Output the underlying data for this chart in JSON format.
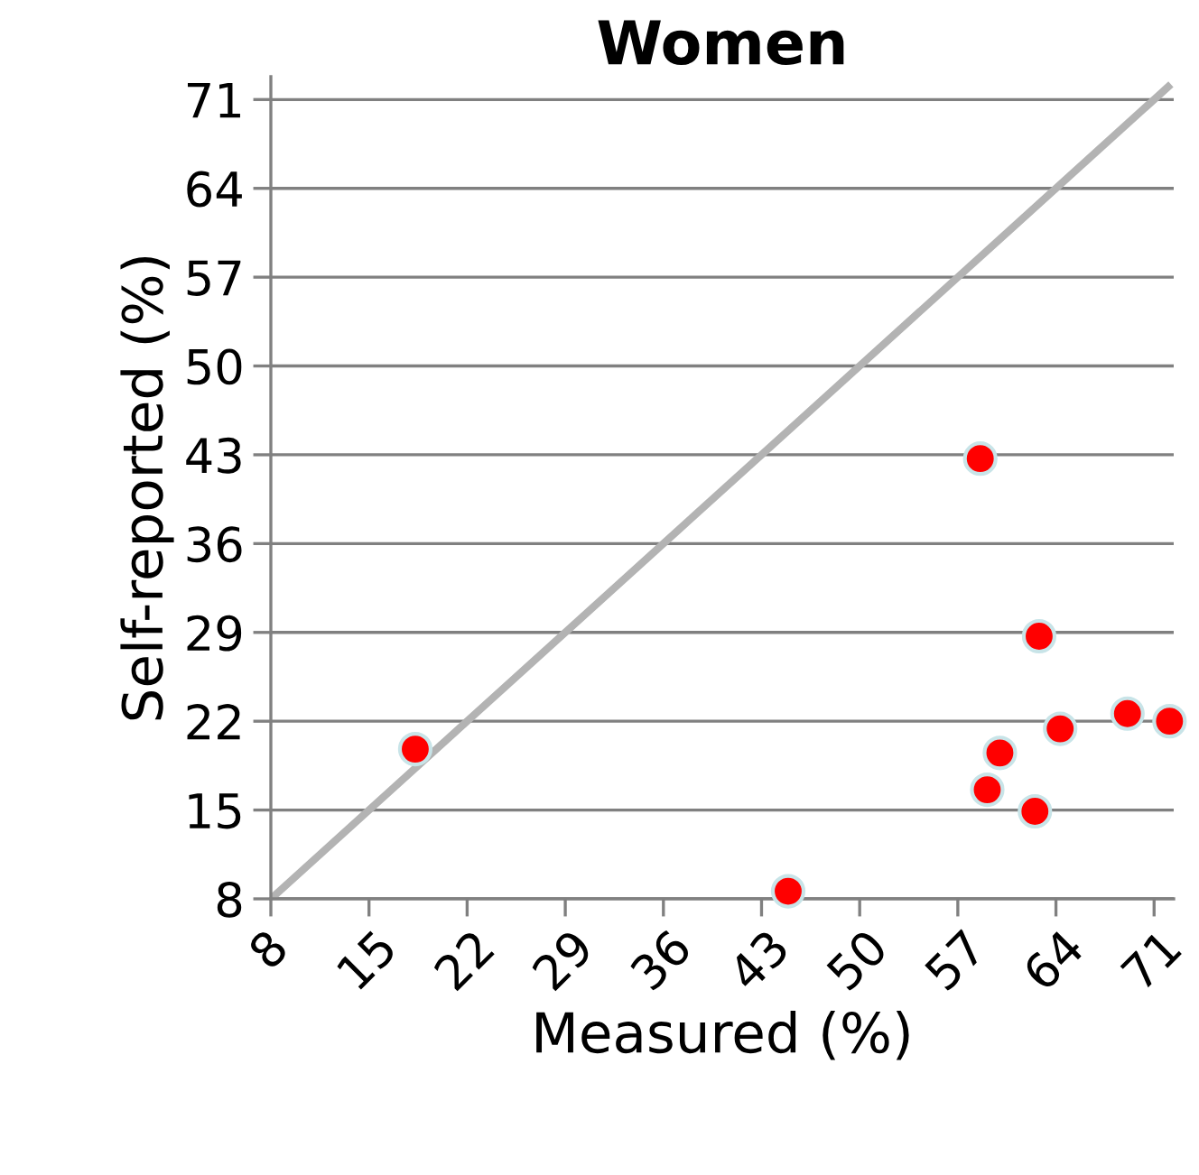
{
  "chart_data": {
    "type": "scatter",
    "title": "Women",
    "xlabel": "Measured (%)",
    "ylabel": "Self-reported (%)",
    "xlim": [
      8,
      72.4
    ],
    "ylim": [
      8,
      72.8
    ],
    "xticks": [
      8,
      15,
      22,
      29,
      36,
      43,
      50,
      57,
      64,
      71
    ],
    "yticks": [
      8,
      15,
      22,
      29,
      36,
      43,
      50,
      57,
      64,
      71
    ],
    "grid": "y",
    "series": [
      {
        "type": "line",
        "color": "#b3b3b3",
        "x": [
          8,
          72
        ],
        "values": [
          8,
          72
        ]
      },
      {
        "marker": "circle",
        "color": "#ff0000",
        "x": [
          18.3,
          44.9,
          58.6,
          62.8,
          60,
          59.1,
          62.5,
          64.3,
          69.1,
          72.1
        ],
        "values": [
          19.8,
          8.6,
          42.7,
          28.7,
          19.5,
          16.6,
          14.9,
          21.4,
          22.6,
          22.0
        ]
      }
    ]
  }
}
